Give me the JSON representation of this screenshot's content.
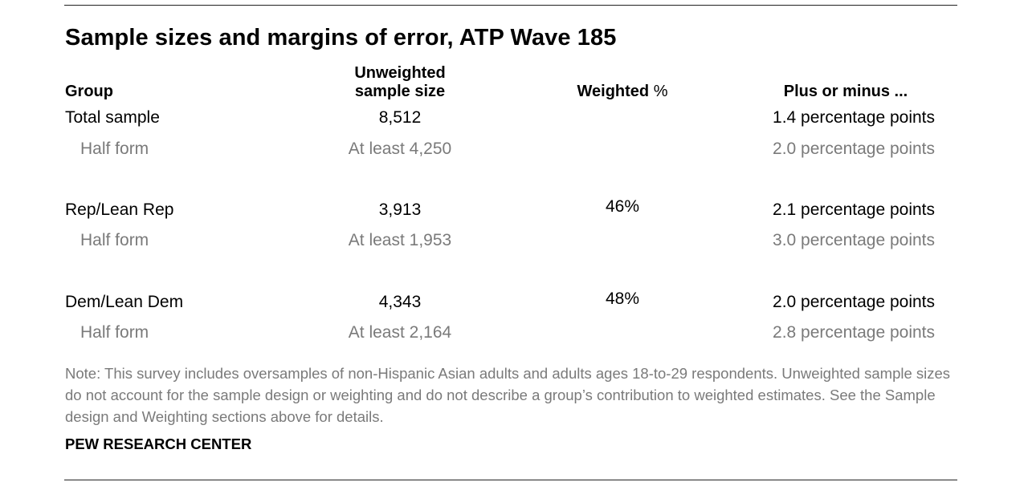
{
  "title": "Sample sizes and margins of error, ATP Wave 185",
  "headers": {
    "group": "Group",
    "unweighted_line1": "Unweighted",
    "unweighted_line2": "sample size",
    "weighted": "Weighted",
    "weighted_symbol": "%",
    "moe": "Plus or minus ..."
  },
  "rows": [
    {
      "group": "Total sample",
      "size": "8,512",
      "weighted": "",
      "moe": "1.4 percentage points"
    },
    {
      "group": "Half form",
      "size": "At least 4,250",
      "weighted": "",
      "moe": "2.0 percentage points"
    },
    {
      "group": "Rep/Lean Rep",
      "size": "3,913",
      "weighted": "46%",
      "moe": "2.1 percentage points"
    },
    {
      "group": "Half form",
      "size": "At least 1,953",
      "weighted": "",
      "moe": "3.0 percentage points"
    },
    {
      "group": "Dem/Lean Dem",
      "size": "4,343",
      "weighted": "48%",
      "moe": "2.0 percentage points"
    },
    {
      "group": "Half form",
      "size": "At least 2,164",
      "weighted": "",
      "moe": "2.8 percentage points"
    }
  ],
  "note": "Note: This survey includes oversamples of non-Hispanic Asian adults and adults ages 18-to-29 respondents. Unweighted sample sizes do not account for the sample design or weighting and do not describe a group’s contribution to weighted estimates. See the Sample design and Weighting sections above for details.",
  "source": "PEW RESEARCH CENTER",
  "colors": {
    "primary_text": "#000000",
    "secondary_text": "#7a7a7a",
    "rule": "#222222"
  }
}
